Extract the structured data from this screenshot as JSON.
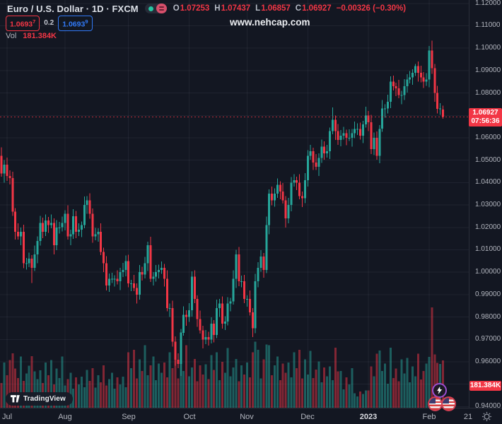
{
  "header": {
    "symbol_title": "Euro / U.S. Dollar · 1D · FXCM",
    "ohlc": {
      "o_label": "O",
      "o_value": "1.07253",
      "h_label": "H",
      "h_value": "1.07437",
      "l_label": "L",
      "l_value": "1.06857",
      "c_label": "C",
      "c_value": "1.06927",
      "change_value": "−0.00326 (−0.30%)"
    },
    "bid_box": {
      "main": "1.0693",
      "sup": "7"
    },
    "spread": "0.2",
    "ask_box": {
      "main": "1.0693",
      "sup": "9"
    },
    "vol_label": "Vol",
    "vol_value": "181.384K"
  },
  "watermark": "www.nehcap.com",
  "price_axis": {
    "ticks": [
      {
        "label": "1.12000",
        "price": 1.12
      },
      {
        "label": "1.11000",
        "price": 1.11
      },
      {
        "label": "1.10000",
        "price": 1.1
      },
      {
        "label": "1.09000",
        "price": 1.09
      },
      {
        "label": "1.08000",
        "price": 1.08
      },
      {
        "label": "1.06000",
        "price": 1.06
      },
      {
        "label": "1.05000",
        "price": 1.05
      },
      {
        "label": "1.04000",
        "price": 1.04
      },
      {
        "label": "1.03000",
        "price": 1.03
      },
      {
        "label": "1.02000",
        "price": 1.02
      },
      {
        "label": "1.01000",
        "price": 1.01
      },
      {
        "label": "1.00000",
        "price": 1.0
      },
      {
        "label": "0.99000",
        "price": 0.99
      },
      {
        "label": "0.98000",
        "price": 0.98
      },
      {
        "label": "0.97000",
        "price": 0.97
      },
      {
        "label": "0.96000",
        "price": 0.96
      },
      {
        "label": "0.94000",
        "price": 0.94
      }
    ],
    "last_price_badge": {
      "price_label": "1.06927",
      "countdown": "07:56:36",
      "price": 1.06927
    },
    "volume_badge": {
      "label": "181.384K"
    }
  },
  "time_axis": {
    "ticks": [
      {
        "label": "Jul",
        "index": 4
      },
      {
        "label": "Aug",
        "index": 25
      },
      {
        "label": "Sep",
        "index": 48
      },
      {
        "label": "Oct",
        "index": 70
      },
      {
        "label": "Nov",
        "index": 91
      },
      {
        "label": "Dec",
        "index": 113
      },
      {
        "label": "2023",
        "index": 135,
        "year": true
      },
      {
        "label": "Feb",
        "index": 157
      },
      {
        "label": "21",
        "index": 171,
        "grid": false
      }
    ]
  },
  "footer": {
    "logo_text": "TradingView"
  },
  "colors": {
    "bg": "#131722",
    "up": "#26a69a",
    "down": "#f23645",
    "grid": "rgba(240,243,250,0.06)",
    "separator": "#2a2e39",
    "axis_text": "#b2b5be",
    "badge_bg": "#f23645",
    "blue": "#3179f5",
    "purple": "#9c4fd1"
  },
  "chart_data": {
    "type": "candlestick_with_volume",
    "title": "Euro / U.S. Dollar 1D FXCM",
    "price_range": [
      0.94,
      1.12
    ],
    "last_close": 1.06927,
    "grid_prices": [
      1.12,
      1.11,
      1.1,
      1.09,
      1.08,
      1.07,
      1.06,
      1.05,
      1.04,
      1.03,
      1.02,
      1.01,
      1.0,
      0.99,
      0.98,
      0.97,
      0.96,
      0.95,
      0.94
    ],
    "candles": [
      [
        1.06,
        1.0628,
        1.0562,
        1.058
      ],
      [
        1.058,
        1.0596,
        1.0486,
        1.052
      ],
      [
        1.052,
        1.0558,
        1.0426,
        1.044
      ],
      [
        1.044,
        1.05,
        1.04,
        1.048
      ],
      [
        1.048,
        1.0512,
        1.0408,
        1.043
      ],
      [
        1.043,
        1.0454,
        1.0392,
        1.042
      ],
      [
        1.042,
        1.0448,
        1.0252,
        1.027
      ],
      [
        1.027,
        1.0286,
        1.0146,
        1.018
      ],
      [
        1.018,
        1.0218,
        1.0146,
        1.016
      ],
      [
        1.016,
        1.02,
        1.012,
        1.018
      ],
      [
        1.018,
        1.0212,
        1.0018,
        1.004
      ],
      [
        1.004,
        1.0064,
        1.0012,
        1.004
      ],
      [
        1.004,
        1.0088,
        1.0022,
        1.006
      ],
      [
        1.006,
        1.0076,
        0.9952,
        1.002
      ],
      [
        1.002,
        1.0118,
        1.0006,
        1.008
      ],
      [
        1.008,
        1.016,
        1.004,
        1.014
      ],
      [
        1.014,
        1.0252,
        1.0118,
        1.022
      ],
      [
        1.022,
        1.0244,
        1.0152,
        1.018
      ],
      [
        1.018,
        1.0258,
        1.0162,
        1.023
      ],
      [
        1.023,
        1.0246,
        1.0176,
        1.021
      ],
      [
        1.021,
        1.0258,
        1.0196,
        1.022
      ],
      [
        1.022,
        1.024,
        1.008,
        1.012
      ],
      [
        1.012,
        1.0232,
        1.0098,
        1.02
      ],
      [
        1.02,
        1.0224,
        1.0172,
        1.02
      ],
      [
        1.02,
        1.0248,
        1.0182,
        1.022
      ],
      [
        1.022,
        1.0276,
        1.0186,
        1.026
      ],
      [
        1.026,
        1.0298,
        1.0146,
        1.016
      ],
      [
        1.016,
        1.019,
        1.012,
        1.017
      ],
      [
        1.017,
        1.0282,
        1.0148,
        1.025
      ],
      [
        1.025,
        1.0274,
        1.0152,
        1.018
      ],
      [
        1.018,
        1.0218,
        1.0162,
        1.019
      ],
      [
        1.019,
        1.0226,
        1.0156,
        1.021
      ],
      [
        1.021,
        1.0338,
        1.0196,
        1.03
      ],
      [
        1.03,
        1.034,
        1.026,
        1.032
      ],
      [
        1.032,
        1.0352,
        1.0238,
        1.026
      ],
      [
        1.026,
        1.0284,
        1.0132,
        1.016
      ],
      [
        1.016,
        1.0198,
        1.0142,
        1.017
      ],
      [
        1.017,
        1.0196,
        1.0136,
        1.018
      ],
      [
        1.018,
        1.0218,
        1.0076,
        1.009
      ],
      [
        1.009,
        1.011,
        1.0,
        1.004
      ],
      [
        1.004,
        1.0072,
        0.9918,
        0.994
      ],
      [
        0.994,
        0.9994,
        0.9912,
        0.997
      ],
      [
        0.997,
        0.9998,
        0.9952,
        0.997
      ],
      [
        0.997,
        0.9986,
        0.9936,
        0.997
      ],
      [
        0.997,
        1.0008,
        0.9946,
        0.996
      ],
      [
        0.996,
        1.002,
        0.992,
        1.0
      ],
      [
        1.0,
        1.0042,
        0.9978,
        1.001
      ],
      [
        1.001,
        1.0074,
        0.9982,
        1.005
      ],
      [
        1.005,
        1.0078,
        0.9932,
        0.995
      ],
      [
        0.995,
        0.9966,
        0.9916,
        0.995
      ],
      [
        0.995,
        0.9988,
        0.9916,
        0.993
      ],
      [
        0.993,
        0.995,
        0.986,
        0.99
      ],
      [
        0.99,
        1.0032,
        0.9878,
        1.0
      ],
      [
        1.0,
        1.0024,
        0.9962,
        0.999
      ],
      [
        0.999,
        1.0068,
        0.9972,
        1.004
      ],
      [
        1.004,
        1.0136,
        1.0006,
        1.012
      ],
      [
        1.012,
        1.0158,
        0.9956,
        0.997
      ],
      [
        0.997,
        1.0,
        0.994,
        0.998
      ],
      [
        0.998,
        1.0032,
        0.9958,
        1.0
      ],
      [
        1.0,
        1.0034,
        0.9972,
        1.001
      ],
      [
        1.001,
        1.0048,
        0.9992,
        1.002
      ],
      [
        1.002,
        1.0036,
        0.9936,
        0.997
      ],
      [
        0.997,
        1.0008,
        0.9826,
        0.984
      ],
      [
        0.984,
        0.986,
        0.98,
        0.984
      ],
      [
        0.984,
        0.9872,
        0.9668,
        0.969
      ],
      [
        0.969,
        0.9714,
        0.9582,
        0.961
      ],
      [
        0.961,
        0.9638,
        0.9572,
        0.959
      ],
      [
        0.959,
        0.9746,
        0.9536,
        0.973
      ],
      [
        0.973,
        0.9848,
        0.9716,
        0.981
      ],
      [
        0.981,
        0.983,
        0.976,
        0.98
      ],
      [
        0.98,
        0.9862,
        0.9778,
        0.983
      ],
      [
        0.983,
        1.0004,
        0.9802,
        0.998
      ],
      [
        0.998,
        1.0008,
        0.9862,
        0.988
      ],
      [
        0.988,
        0.9896,
        0.9756,
        0.979
      ],
      [
        0.979,
        0.9828,
        0.9726,
        0.974
      ],
      [
        0.974,
        0.976,
        0.966,
        0.97
      ],
      [
        0.97,
        0.9742,
        0.9678,
        0.971
      ],
      [
        0.971,
        0.9734,
        0.9672,
        0.97
      ],
      [
        0.97,
        0.9798,
        0.9682,
        0.977
      ],
      [
        0.977,
        0.9786,
        0.9686,
        0.972
      ],
      [
        0.972,
        0.9878,
        0.9706,
        0.984
      ],
      [
        0.984,
        0.988,
        0.98,
        0.986
      ],
      [
        0.986,
        0.9892,
        0.9748,
        0.977
      ],
      [
        0.977,
        0.9804,
        0.9742,
        0.978
      ],
      [
        0.978,
        0.9888,
        0.9762,
        0.986
      ],
      [
        0.986,
        0.9886,
        0.9826,
        0.987
      ],
      [
        0.987,
        1.0008,
        0.9856,
        0.997
      ],
      [
        0.997,
        1.01,
        0.993,
        1.008
      ],
      [
        1.008,
        1.0112,
        0.9938,
        0.996
      ],
      [
        0.996,
        0.9984,
        0.9932,
        0.996
      ],
      [
        0.996,
        0.9988,
        0.9862,
        0.988
      ],
      [
        0.988,
        0.9896,
        0.9846,
        0.988
      ],
      [
        0.988,
        0.9918,
        0.9806,
        0.982
      ],
      [
        0.982,
        0.984,
        0.971,
        0.975
      ],
      [
        0.975,
        0.9992,
        0.9728,
        0.996
      ],
      [
        0.996,
        1.0044,
        0.9932,
        1.002
      ],
      [
        1.002,
        1.0098,
        1.0002,
        1.007
      ],
      [
        1.007,
        1.0086,
        0.9976,
        1.001
      ],
      [
        1.001,
        1.0248,
        0.9996,
        1.021
      ],
      [
        1.021,
        1.037,
        1.017,
        1.035
      ],
      [
        1.035,
        1.0382,
        1.0298,
        1.032
      ],
      [
        1.032,
        1.0374,
        1.0292,
        1.035
      ],
      [
        1.035,
        1.0418,
        1.0332,
        1.039
      ],
      [
        1.039,
        1.0406,
        1.0326,
        1.036
      ],
      [
        1.036,
        1.0398,
        1.0306,
        1.032
      ],
      [
        1.032,
        1.034,
        1.02,
        1.024
      ],
      [
        1.024,
        1.0332,
        1.0218,
        1.03
      ],
      [
        1.03,
        1.0424,
        1.0272,
        1.04
      ],
      [
        1.04,
        1.0438,
        1.0382,
        1.041
      ],
      [
        1.041,
        1.0426,
        1.0366,
        1.04
      ],
      [
        1.04,
        1.0438,
        1.0326,
        1.034
      ],
      [
        1.034,
        1.036,
        1.029,
        1.033
      ],
      [
        1.033,
        1.0442,
        1.0308,
        1.041
      ],
      [
        1.041,
        1.0544,
        1.0382,
        1.052
      ],
      [
        1.052,
        1.0568,
        1.0502,
        1.054
      ],
      [
        1.054,
        1.0556,
        1.0456,
        1.049
      ],
      [
        1.049,
        1.0528,
        1.0456,
        1.047
      ],
      [
        1.047,
        1.053,
        1.043,
        1.051
      ],
      [
        1.051,
        1.0592,
        1.0488,
        1.056
      ],
      [
        1.056,
        1.0584,
        1.0502,
        1.053
      ],
      [
        1.053,
        1.0568,
        1.0512,
        1.054
      ],
      [
        1.054,
        1.0646,
        1.0506,
        1.063
      ],
      [
        1.063,
        1.0735,
        1.0616,
        1.068
      ],
      [
        1.068,
        1.07,
        1.059,
        1.063
      ],
      [
        1.063,
        1.0662,
        1.0568,
        1.059
      ],
      [
        1.059,
        1.0634,
        1.0562,
        1.061
      ],
      [
        1.061,
        1.0648,
        1.0592,
        1.062
      ],
      [
        1.062,
        1.0636,
        1.0566,
        1.06
      ],
      [
        1.06,
        1.0638,
        1.0586,
        1.06
      ],
      [
        1.06,
        1.064,
        1.056,
        1.062
      ],
      [
        1.062,
        1.0672,
        1.0598,
        1.064
      ],
      [
        1.064,
        1.0664,
        1.0612,
        1.064
      ],
      [
        1.064,
        1.0668,
        1.0592,
        1.061
      ],
      [
        1.061,
        1.0676,
        1.0576,
        1.066
      ],
      [
        1.066,
        1.0738,
        1.0646,
        1.07
      ],
      [
        1.07,
        1.072,
        1.063,
        1.067
      ],
      [
        1.067,
        1.0702,
        1.0528,
        1.055
      ],
      [
        1.055,
        1.0624,
        1.0522,
        1.06
      ],
      [
        1.06,
        1.0628,
        1.0502,
        1.052
      ],
      [
        1.052,
        1.0656,
        1.0486,
        1.064
      ],
      [
        1.064,
        1.0768,
        1.0626,
        1.073
      ],
      [
        1.073,
        1.075,
        1.069,
        1.073
      ],
      [
        1.073,
        1.0792,
        1.0708,
        1.076
      ],
      [
        1.076,
        1.0874,
        1.0732,
        1.085
      ],
      [
        1.085,
        1.0878,
        1.0812,
        1.083
      ],
      [
        1.083,
        1.0846,
        1.0786,
        1.082
      ],
      [
        1.082,
        1.0858,
        1.0776,
        1.079
      ],
      [
        1.079,
        1.081,
        1.075,
        1.079
      ],
      [
        1.079,
        1.0862,
        1.0768,
        1.083
      ],
      [
        1.083,
        1.0884,
        1.0802,
        1.086
      ],
      [
        1.086,
        1.0898,
        1.0842,
        1.087
      ],
      [
        1.087,
        1.0906,
        1.0836,
        1.089
      ],
      [
        1.089,
        1.093,
        1.0876,
        1.092
      ],
      [
        1.092,
        1.094,
        1.085,
        1.089
      ],
      [
        1.089,
        1.0922,
        1.0848,
        1.087
      ],
      [
        1.087,
        1.0894,
        1.0822,
        1.085
      ],
      [
        1.085,
        1.0888,
        1.0832,
        1.086
      ],
      [
        1.086,
        1.101,
        1.0826,
        1.099
      ],
      [
        1.099,
        1.1033,
        1.0886,
        1.091
      ],
      [
        1.091,
        1.093,
        1.076,
        1.08
      ],
      [
        1.08,
        1.0832,
        1.0708,
        1.073
      ],
      [
        1.073,
        1.0754,
        1.0702,
        1.073
      ],
      [
        1.07253,
        1.07437,
        1.06857,
        1.06927
      ]
    ],
    "volumes_k": [
      110,
      143,
      95,
      174,
      125,
      183,
      209,
      150,
      114,
      196,
      103,
      132,
      161,
      198,
      139,
      110,
      143,
      95,
      174,
      125,
      183,
      90,
      150,
      114,
      196,
      86,
      110,
      134,
      73,
      117,
      90,
      119,
      79,
      145,
      103,
      152,
      77,
      125,
      97,
      163,
      86,
      110,
      134,
      73,
      117,
      90,
      119,
      79,
      213,
      152,
      222,
      112,
      185,
      141,
      240,
      125,
      163,
      196,
      106,
      169,
      134,
      174,
      117,
      213,
      152,
      222,
      112,
      264,
      141,
      240,
      121,
      154,
      187,
      101,
      163,
      128,
      167,
      110,
      202,
      145,
      213,
      106,
      176,
      134,
      229,
      121,
      154,
      187,
      101,
      163,
      128,
      174,
      117,
      213,
      253,
      222,
      112,
      185,
      242,
      240,
      125,
      163,
      196,
      106,
      169,
      134,
      174,
      117,
      213,
      152,
      222,
      112,
      185,
      128,
      218,
      114,
      147,
      178,
      97,
      154,
      121,
      158,
      106,
      231,
      139,
      141,
      70,
      117,
      90,
      152,
      55,
      44,
      62,
      53,
      66,
      66,
      158,
      121,
      207,
      220,
      141,
      169,
      92,
      231,
      114,
      150,
      101,
      185,
      132,
      191,
      97,
      158,
      121,
      207,
      108,
      141,
      169,
      195,
      385,
      205,
      172,
      168,
      181.384
    ]
  }
}
